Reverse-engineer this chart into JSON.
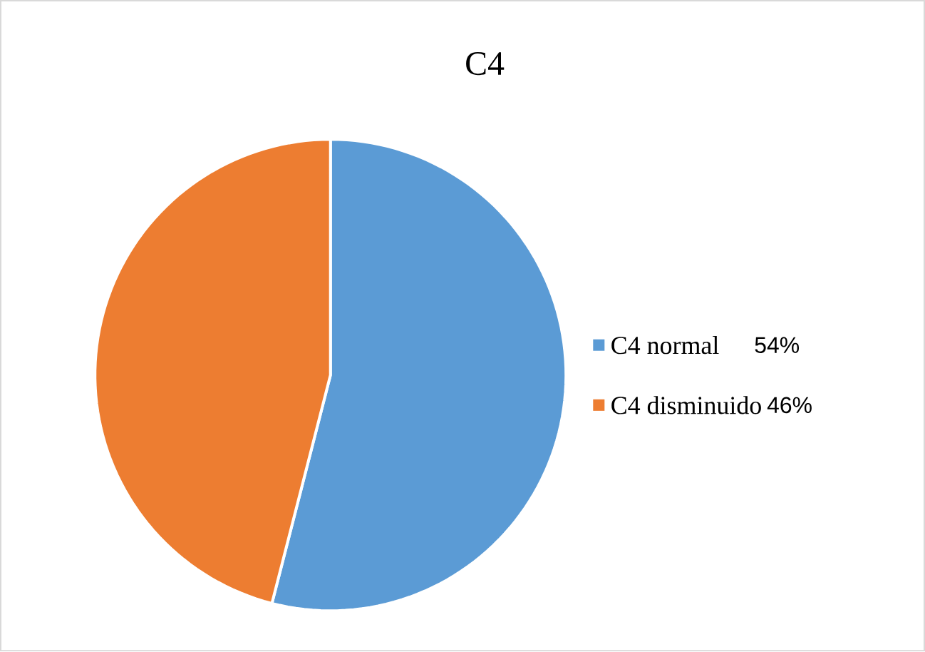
{
  "chart_data": {
    "type": "pie",
    "title": "C4",
    "categories": [
      "C4 normal",
      "C4 disminuido"
    ],
    "values": [
      54,
      46
    ],
    "colors": [
      "#5b9bd5",
      "#ed7d31"
    ],
    "value_labels": [
      "54%",
      "46%"
    ],
    "legend": "right"
  }
}
